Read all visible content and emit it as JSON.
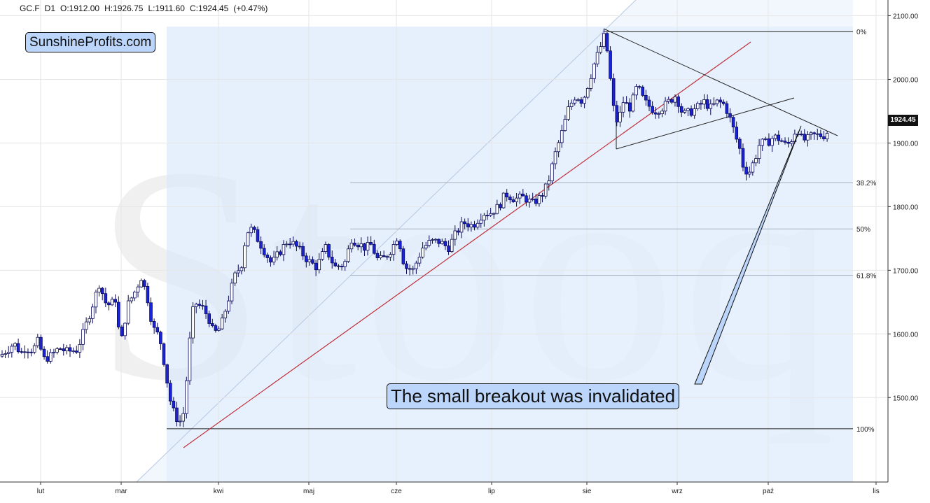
{
  "header": {
    "symbol": "GC.F",
    "interval": "D1",
    "open": "O:1912.00",
    "high": "H:1926.75",
    "low": "L:1911.60",
    "close": "C:1924.45",
    "change": "(+0.47%)"
  },
  "brand_label": "SunshineProfits.com",
  "watermark": "Stooq",
  "annotation": "The small breakout was invalidated",
  "last_price_label": "1924.45",
  "colors": {
    "bull_candle": "#ffffff",
    "bear_candle": "#1a23d8",
    "candle_outline": "#0a0a5a",
    "fib_zone": "#d9e8fc",
    "channel_fill": "#e8f1fd",
    "support_line": "#c0303a",
    "annotation_bg": "#bcd6fb"
  },
  "chart_data": {
    "type": "candlestick",
    "title": "GC.F D1",
    "x_ticks": [
      "lut",
      "mar",
      "kwi",
      "maj",
      "cze",
      "lip",
      "sie",
      "wrz",
      "paź",
      "lis"
    ],
    "y_ticks": [
      "1500.00",
      "1600.00",
      "1700.00",
      "1800.00",
      "1900.00",
      "2000.00",
      "2100.00"
    ],
    "ylim": [
      1390,
      2120
    ],
    "fibonacci": [
      {
        "label": "0%",
        "value": 2075
      },
      {
        "label": "38.2%",
        "value": 1838
      },
      {
        "label": "50%",
        "value": 1765
      },
      {
        "label": "61.8%",
        "value": 1692
      },
      {
        "label": "100%",
        "value": 1451
      }
    ],
    "grid": true,
    "legend": "none"
  }
}
